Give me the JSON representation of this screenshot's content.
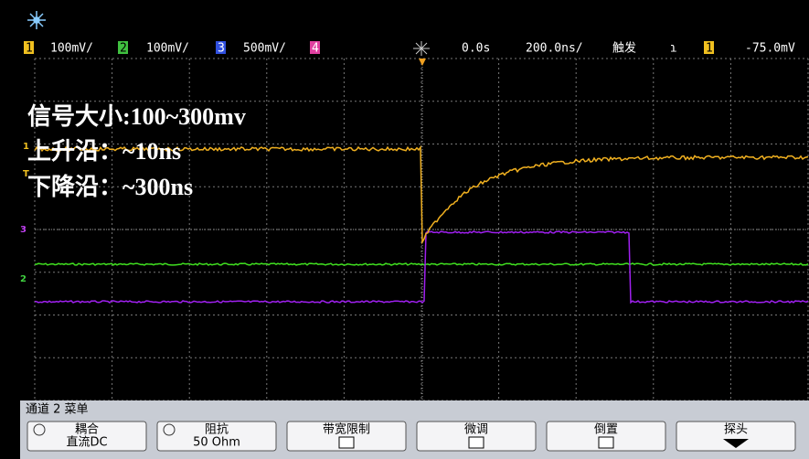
{
  "status_bar": {
    "channels": [
      {
        "number": "1",
        "scale": "100mV/"
      },
      {
        "number": "2",
        "scale": "100mV/"
      },
      {
        "number": "3",
        "scale": "500mV/"
      },
      {
        "number": "4"
      }
    ],
    "time_offset": "0.0s",
    "time_scale": "200.0ns/",
    "trigger_label": "触发",
    "trigger_slope": "ɿ",
    "trigger_channel": "1",
    "trigger_level": "-75.0mV"
  },
  "annotations": [
    "信号大小:100~300mv",
    "上升沿：~10ns",
    "下降沿：~300ns"
  ],
  "channel_markers": [
    "1",
    "T",
    "3",
    "2"
  ],
  "menu": {
    "title": "通道 2 菜单",
    "softkeys": [
      {
        "label": "耦合",
        "value": "直流DC"
      },
      {
        "label": "阻抗",
        "value": "50 Ohm"
      },
      {
        "label": "带宽限制"
      },
      {
        "label": "微调"
      },
      {
        "label": "倒置"
      },
      {
        "label": "探头"
      }
    ]
  }
}
